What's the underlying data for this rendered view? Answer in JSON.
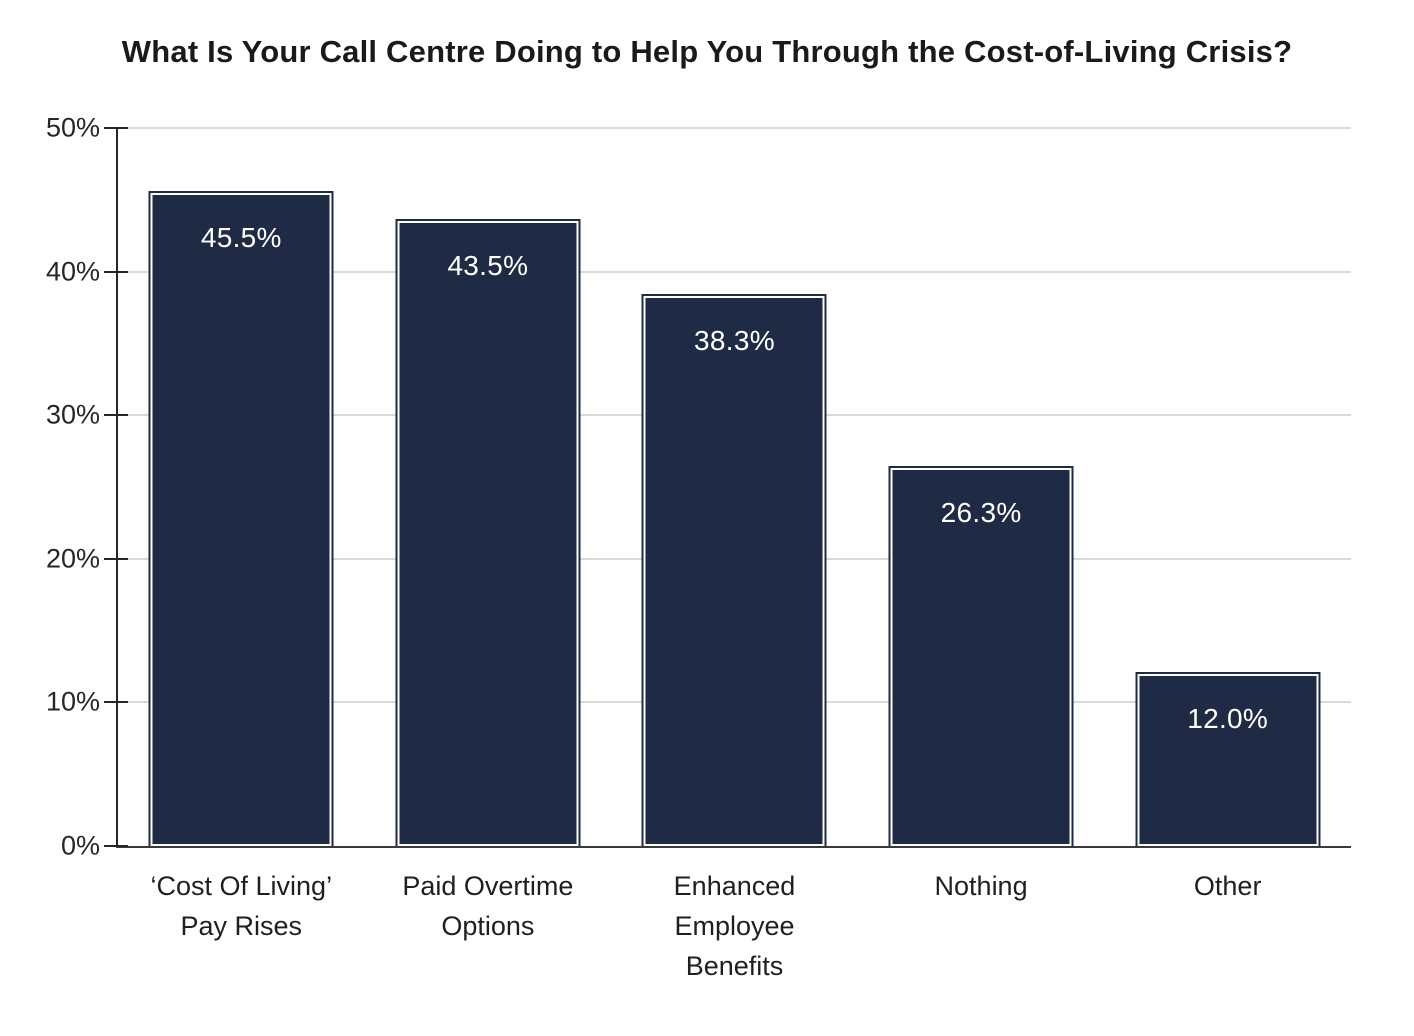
{
  "chart_data": {
    "type": "bar",
    "title": "What Is Your Call Centre Doing to Help You Through the Cost-of-Living Crisis?",
    "categories": [
      "‘Cost Of Living’ Pay Rises",
      "Paid Overtime Options",
      "Enhanced Employee Benefits",
      "Nothing",
      "Other"
    ],
    "category_label_lines": [
      [
        "‘Cost Of Living’",
        "Pay Rises"
      ],
      [
        "Paid Overtime",
        "Options"
      ],
      [
        "Enhanced",
        "Employee",
        "Benefits"
      ],
      [
        "Nothing"
      ],
      [
        "Other"
      ]
    ],
    "values": [
      45.5,
      43.5,
      38.3,
      26.3,
      12.0
    ],
    "value_labels": [
      "45.5%",
      "43.5%",
      "38.3%",
      "26.3%",
      "12.0%"
    ],
    "xlabel": "",
    "ylabel": "",
    "ylim": [
      0,
      50
    ],
    "ytick_labels": [
      "0%",
      "10%",
      "20%",
      "30%",
      "40%",
      "50%"
    ],
    "grid": true,
    "legend_position": "none",
    "colors": {
      "bar_fill": "#1f2a44",
      "bar_inner_border": "#ffffff",
      "bar_outer_border": "#1f2a44",
      "value_label": "#ffffff",
      "gridline": "#d9d9d9",
      "axis_line": "#3a3a3a",
      "tick_mark": "#262626",
      "tick_label": "#262626",
      "category_label": "#1f1f1f",
      "title": "#1a1a1a",
      "background": "#ffffff"
    }
  }
}
